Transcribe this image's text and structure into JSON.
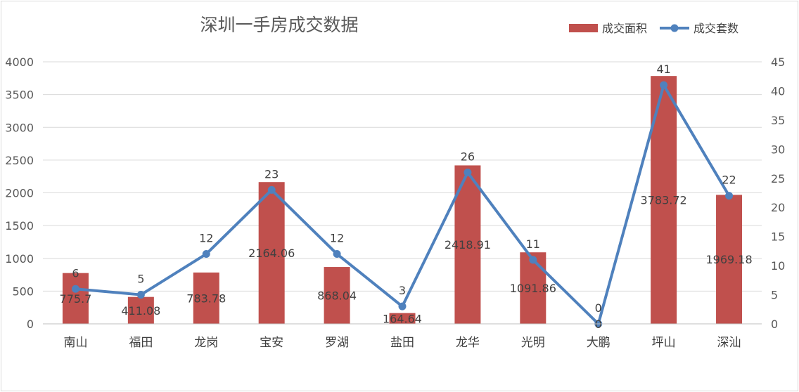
{
  "chart_data": {
    "type": "bar",
    "title": "深圳一手房成交数据",
    "categories": [
      "南山",
      "福田",
      "龙岗",
      "宝安",
      "罗湖",
      "盐田",
      "龙华",
      "光明",
      "大鹏",
      "坪山",
      "深汕"
    ],
    "series": [
      {
        "name": "成交面积",
        "type": "bar",
        "axis": "left",
        "color": "#c0504d",
        "values": [
          775.7,
          411.08,
          783.78,
          2164.06,
          868.04,
          164.64,
          2418.91,
          1091.86,
          0,
          3783.72,
          1969.18
        ],
        "labels": [
          "775.7",
          "411.08",
          "783.78",
          "2164.06",
          "868.04",
          "164.64",
          "2418.91",
          "1091.86",
          "0",
          "3783.72",
          "1969.18"
        ]
      },
      {
        "name": "成交套数",
        "type": "line",
        "axis": "right",
        "color": "#4f81bd",
        "values": [
          6,
          5,
          12,
          23,
          12,
          3,
          26,
          11,
          0,
          41,
          22
        ],
        "labels": [
          "6",
          "5",
          "12",
          "23",
          "12",
          "3",
          "26",
          "11",
          "0",
          "41",
          "22"
        ]
      }
    ],
    "y_left": {
      "min": 0,
      "max": 4000,
      "ticks": [
        "0",
        "500",
        "1000",
        "1500",
        "2000",
        "2500",
        "3000",
        "3500",
        "4000"
      ]
    },
    "y_right": {
      "min": 0,
      "max": 45,
      "ticks": [
        "0",
        "5",
        "10",
        "15",
        "20",
        "25",
        "30",
        "35",
        "40",
        "45"
      ]
    },
    "grid": true,
    "legend_position": "top-right"
  }
}
